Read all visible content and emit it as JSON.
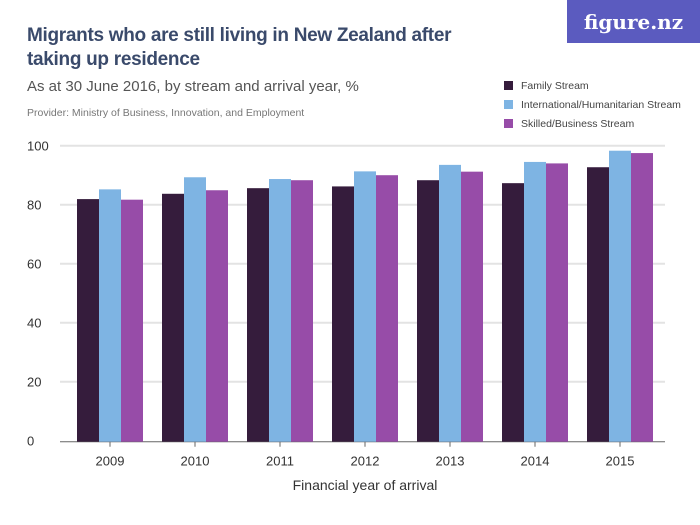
{
  "header": {
    "title": "Migrants who are still living in New Zealand after taking up residence",
    "subtitle": "As at 30 June 2016, by stream and arrival year, %",
    "provider": "Provider: Ministry of Business, Innovation, and Employment",
    "logo": "figure.nz"
  },
  "chart_data": {
    "type": "bar",
    "title": "Migrants who are still living in New Zealand after taking up residence",
    "xlabel": "Financial year of arrival",
    "ylabel": "",
    "ylim": [
      0,
      100
    ],
    "yticks": [
      0,
      20,
      40,
      60,
      80,
      100
    ],
    "grid": true,
    "legend_placement": "top-right",
    "categories": [
      "2009",
      "2010",
      "2011",
      "2012",
      "2013",
      "2014",
      "2015"
    ],
    "series": [
      {
        "name": "Family Stream",
        "color": "#351c3c",
        "values": [
          81.9,
          83.7,
          85.6,
          86.2,
          88.3,
          87.3,
          92.7
        ]
      },
      {
        "name": "International/Humanitarian Stream",
        "color": "#7eb4e3",
        "values": [
          85.2,
          89.3,
          88.7,
          91.3,
          93.5,
          94.5,
          98.3
        ]
      },
      {
        "name": "Skilled/Business Stream",
        "color": "#974ca8",
        "values": [
          81.7,
          84.9,
          88.3,
          90.0,
          91.2,
          94.0,
          97.5
        ]
      }
    ]
  }
}
